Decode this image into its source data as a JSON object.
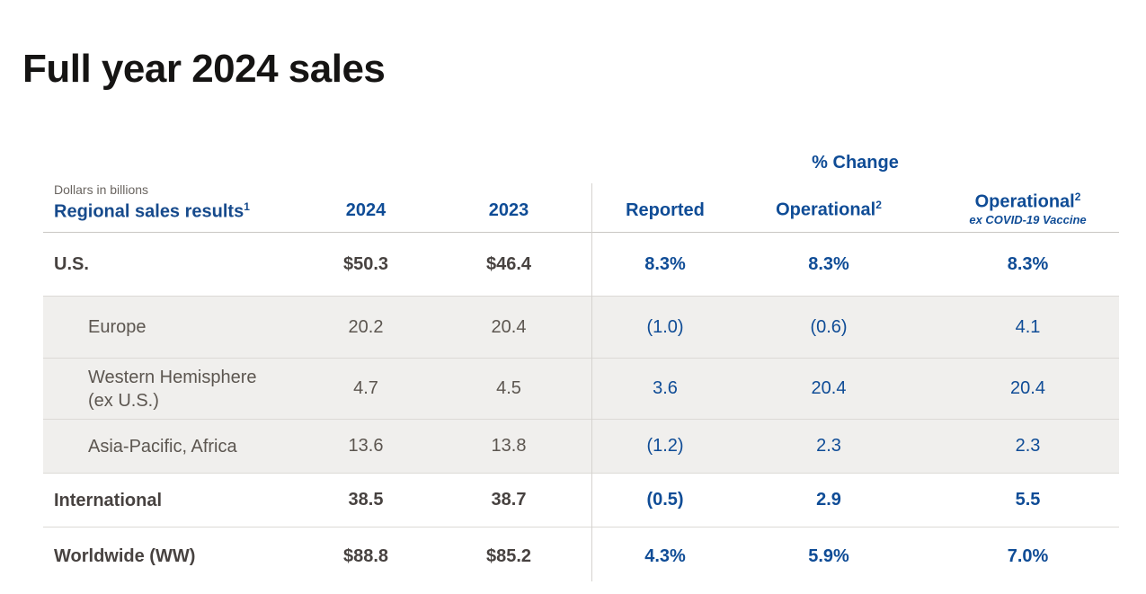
{
  "page_title": "Full year 2024 sales",
  "accent_colors": {
    "blue": "#0f4c96",
    "shaded_row_bg": "#f0efed",
    "dark_text": "#474240",
    "gray_text": "#5c5650"
  },
  "table": {
    "note": "Dollars in billions",
    "group_header": "% Change",
    "columns": {
      "label": "Regional sales results",
      "label_sup": "1",
      "year1": "2024",
      "year2": "2023",
      "reported": "Reported",
      "operational": "Operational",
      "operational_sup": "2",
      "ex_covid_sub": "ex COVID-19 Vaccine"
    },
    "rows": [
      {
        "label": "U.S.",
        "y2024": "$50.3",
        "y2023": "$46.4",
        "reported": "8.3%",
        "operational": "8.3%",
        "operational_ex": "8.3%",
        "shaded": false,
        "emphasis": true,
        "indent": false
      },
      {
        "label": "Europe",
        "y2024": "20.2",
        "y2023": "20.4",
        "reported": "(1.0)",
        "operational": "(0.6)",
        "operational_ex": "4.1",
        "shaded": true,
        "emphasis": false,
        "indent": true
      },
      {
        "label": "Western Hemisphere\n(ex U.S.)",
        "y2024": "4.7",
        "y2023": "4.5",
        "reported": "3.6",
        "operational": "20.4",
        "operational_ex": "20.4",
        "shaded": true,
        "emphasis": false,
        "indent": true
      },
      {
        "label": "Asia-Pacific, Africa",
        "y2024": "13.6",
        "y2023": "13.8",
        "reported": "(1.2)",
        "operational": "2.3",
        "operational_ex": "2.3",
        "shaded": true,
        "emphasis": false,
        "indent": true
      },
      {
        "label": "International",
        "y2024": "38.5",
        "y2023": "38.7",
        "reported": "(0.5)",
        "operational": "2.9",
        "operational_ex": "5.5",
        "shaded": false,
        "emphasis": true,
        "indent": false
      },
      {
        "label": "Worldwide (WW)",
        "y2024": "$88.8",
        "y2023": "$85.2",
        "reported": "4.3%",
        "operational": "5.9%",
        "operational_ex": "7.0%",
        "shaded": false,
        "emphasis": true,
        "indent": false
      }
    ]
  }
}
